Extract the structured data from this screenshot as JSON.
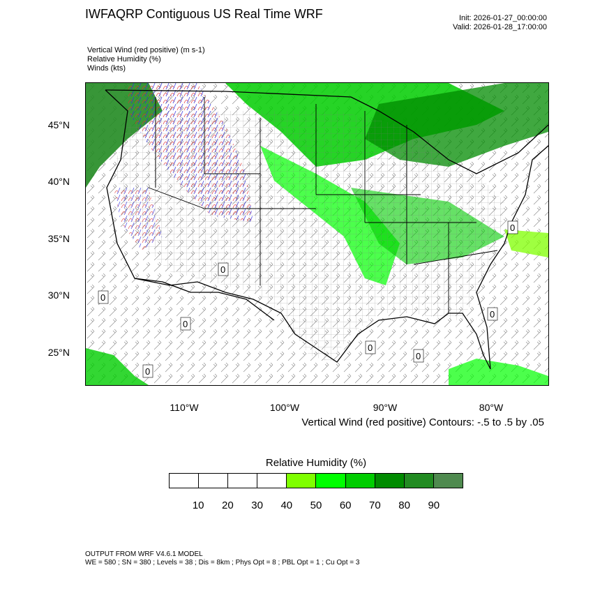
{
  "title": "IWFAQRP Contiguous US Real Time WRF",
  "init": "Init: 2026-01-27_00:00:00",
  "valid": "Valid: 2026-01-28_17:00:00",
  "fields": [
    "Vertical Wind (red positive)   (m s-1)",
    "Relative Humidity   (%)",
    "Winds   (kts)"
  ],
  "lat_labels": [
    "45°N",
    "40°N",
    "35°N",
    "30°N",
    "25°N"
  ],
  "lon_labels": [
    "110°W",
    "100°W",
    "90°W",
    "80°W"
  ],
  "contour_note": "Vertical Wind (red positive) Contours: -.5 to .5 by .05",
  "colorbar": {
    "title": "Relative Humidity  (%)",
    "labels": [
      "10",
      "20",
      "30",
      "40",
      "50",
      "60",
      "70",
      "80",
      "90"
    ],
    "colors": [
      "#ffffff",
      "#ffffff",
      "#ffffff",
      "#ffffff",
      "#7fff00",
      "#00ff00",
      "#00cd00",
      "#008b00",
      "#228b22",
      "#4f8a4f"
    ]
  },
  "footer": [
    "OUTPUT FROM WRF V4.6.1 MODEL",
    "WE = 580 ; SN = 380 ; Levels = 38 ; Dis = 8km ; Phys Opt = 8 ; PBL Opt = 1 ; Cu Opt = 3"
  ],
  "contour_zero_label": "0"
}
